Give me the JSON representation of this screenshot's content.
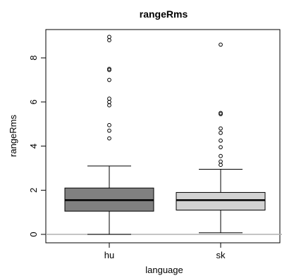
{
  "chart_data": {
    "type": "boxplot",
    "title": "rangeRms",
    "xlabel": "language",
    "ylabel": "rangeRms",
    "categories": [
      "hu",
      "sk"
    ],
    "ylim": [
      0,
      9
    ],
    "yticks": [
      0,
      2,
      4,
      6,
      8
    ],
    "reference_line": 0,
    "grid": false,
    "boxes": [
      {
        "category": "hu",
        "whisker_low": 0.0,
        "q1": 1.05,
        "median": 1.55,
        "q3": 2.1,
        "whisker_high": 3.1,
        "outliers": [
          4.35,
          4.7,
          4.95,
          5.85,
          6.0,
          6.15,
          7.0,
          7.45,
          7.5,
          8.8,
          8.95
        ],
        "color": "#808080"
      },
      {
        "category": "sk",
        "whisker_low": 0.07,
        "q1": 1.1,
        "median": 1.55,
        "q3": 1.9,
        "whisker_high": 2.95,
        "outliers": [
          3.15,
          3.3,
          3.55,
          3.95,
          4.25,
          4.6,
          4.8,
          5.45,
          5.5,
          8.6
        ],
        "color": "#d3d3d3"
      }
    ]
  }
}
